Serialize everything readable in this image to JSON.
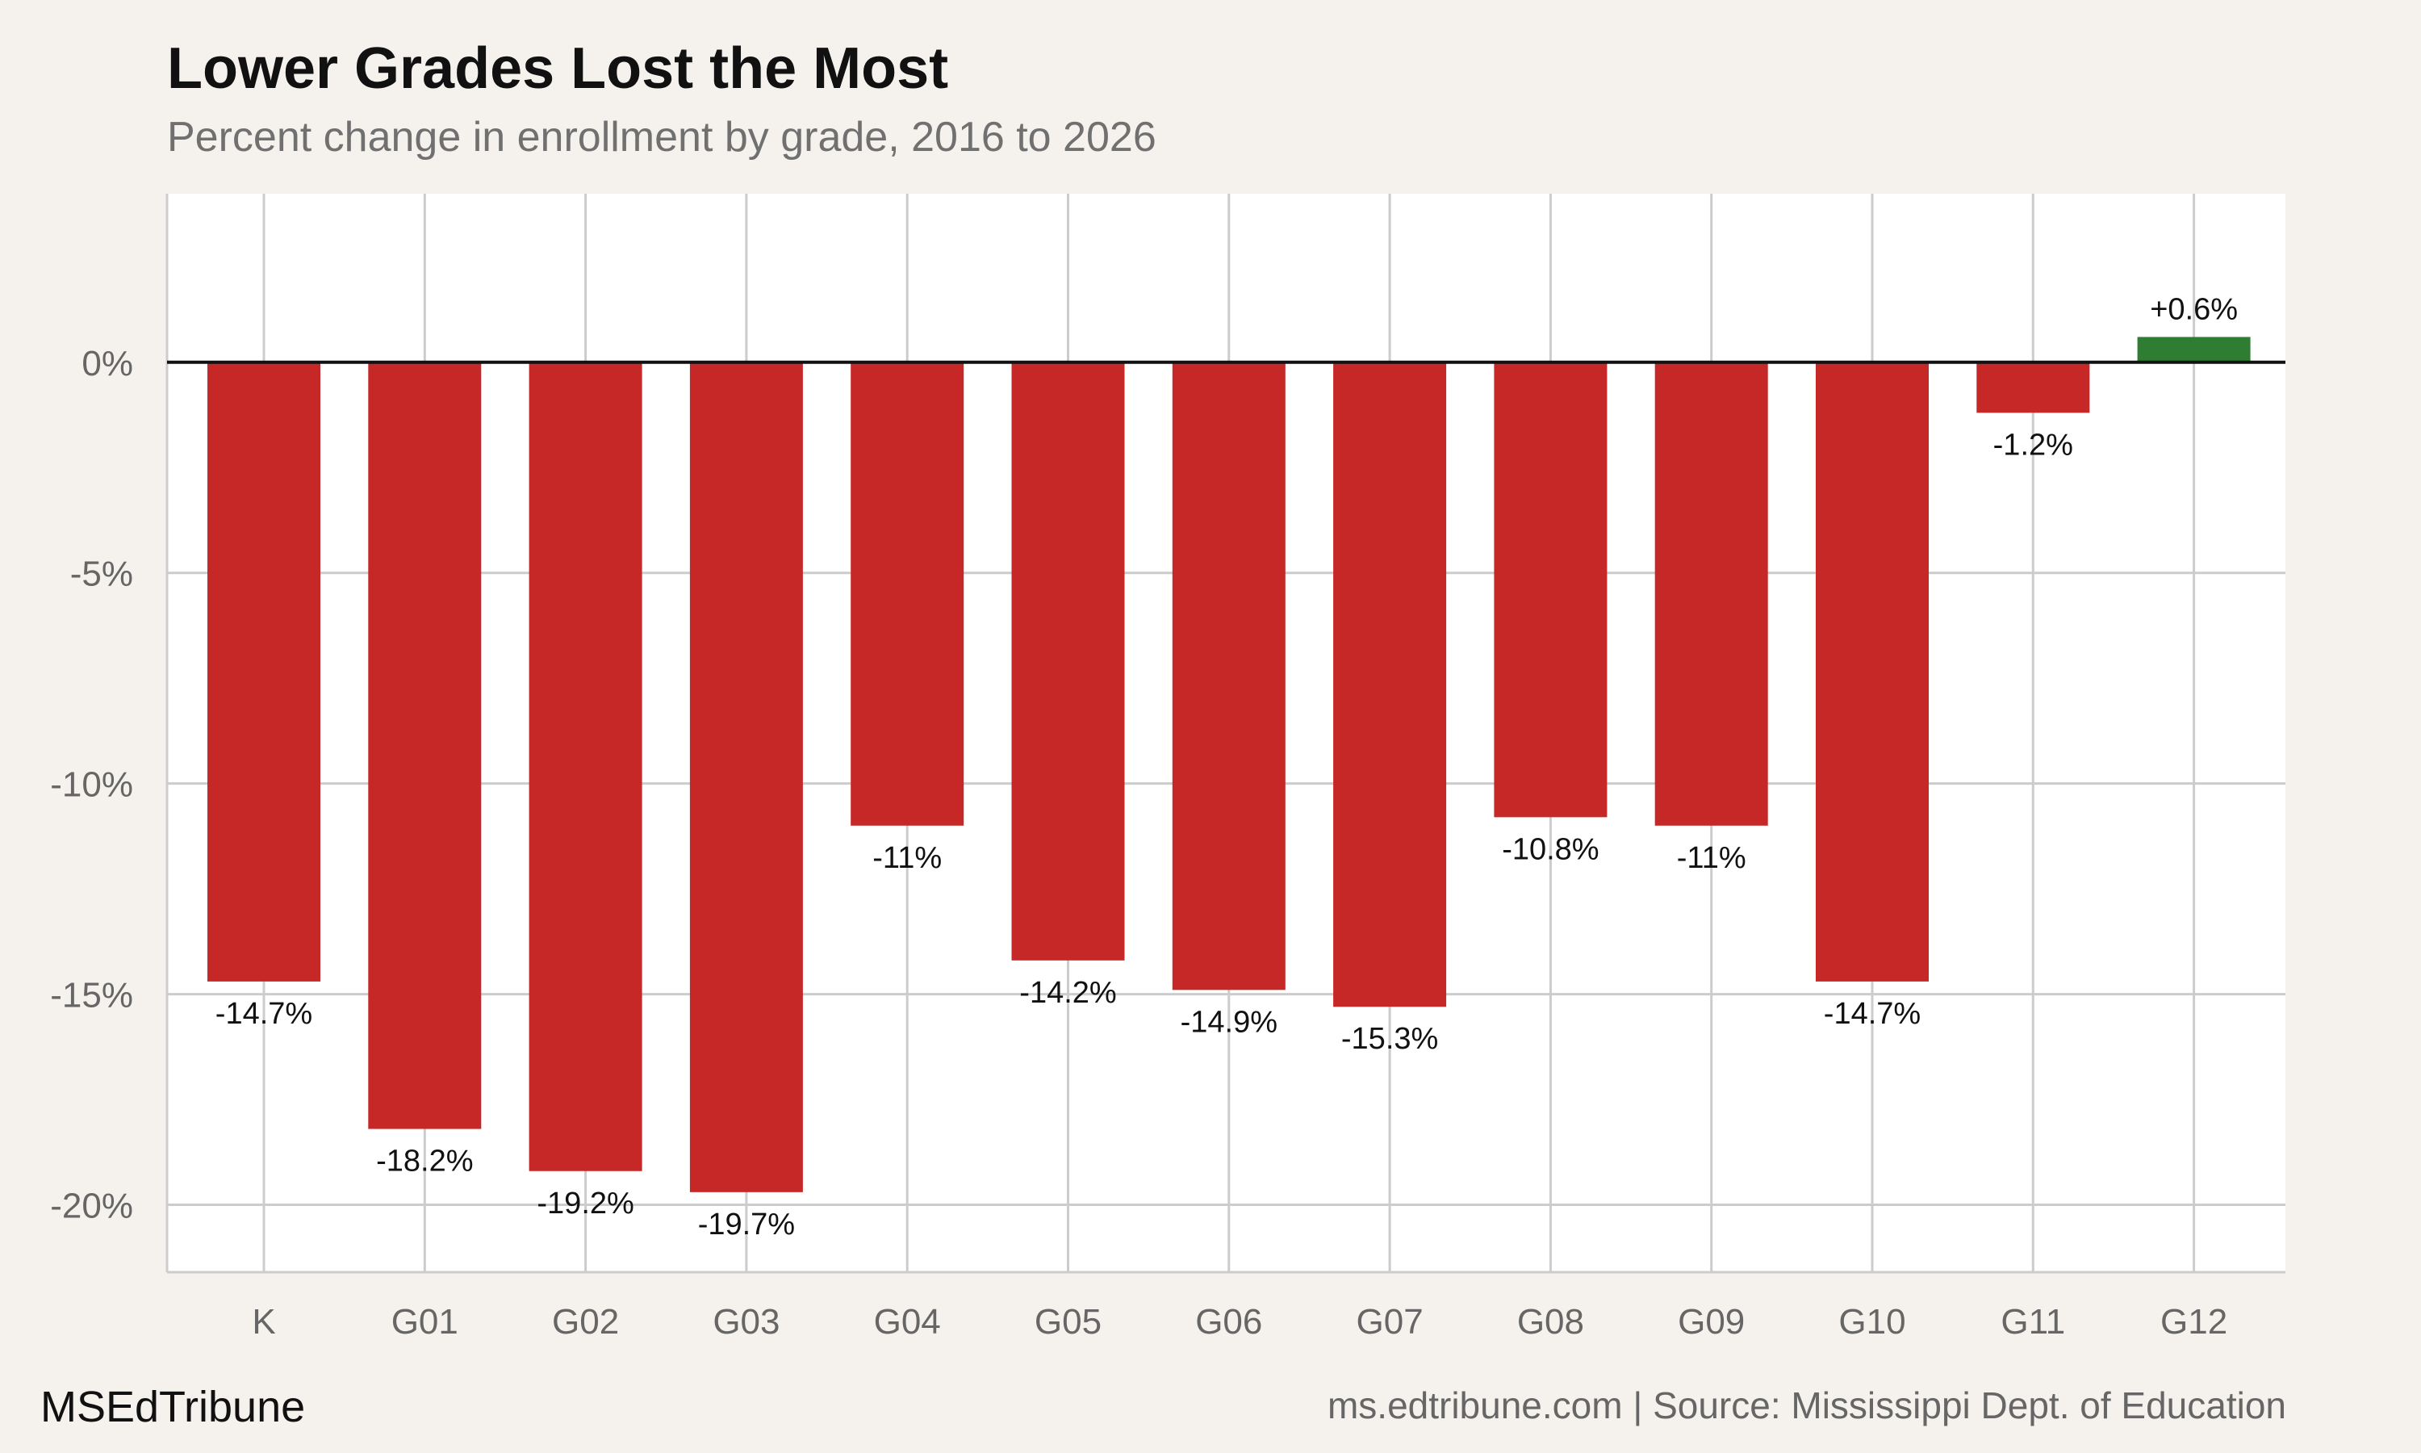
{
  "title": "Lower Grades Lost the Most",
  "subtitle": "Percent change in enrollment by grade, 2016 to 2026",
  "footer": {
    "brand": "MSEdTribune",
    "source": "ms.edtribune.com | Source: Mississippi Dept. of Education"
  },
  "colors": {
    "negative": "#c62828",
    "positive": "#2e7d32",
    "panel": "#ffffff",
    "background": "#f5f2ed",
    "grid": "#cccccc",
    "zero_line": "#111111"
  },
  "chart_data": {
    "type": "bar",
    "categories": [
      "K",
      "G01",
      "G02",
      "G03",
      "G04",
      "G05",
      "G06",
      "G07",
      "G08",
      "G09",
      "G10",
      "G11",
      "G12"
    ],
    "values": [
      -14.7,
      -18.2,
      -19.2,
      -19.7,
      -11,
      -14.2,
      -14.9,
      -15.3,
      -10.8,
      -11,
      -14.7,
      -1.2,
      0.6
    ],
    "data_labels": [
      "-14.7%",
      "-18.2%",
      "-19.2%",
      "-19.7%",
      "-11%",
      "-14.2%",
      "-14.9%",
      "-15.3%",
      "-10.8%",
      "-11%",
      "-14.7%",
      "-1.2%",
      "+0.6%"
    ],
    "yticks": [
      0,
      -5,
      -10,
      -15,
      -20
    ],
    "ytick_labels": [
      "0%",
      "-5%",
      "-10%",
      "-15%",
      "-20%"
    ],
    "ylim": [
      -21.6,
      4
    ],
    "xlabel": "",
    "ylabel": "",
    "grid": true,
    "legend": "none"
  }
}
